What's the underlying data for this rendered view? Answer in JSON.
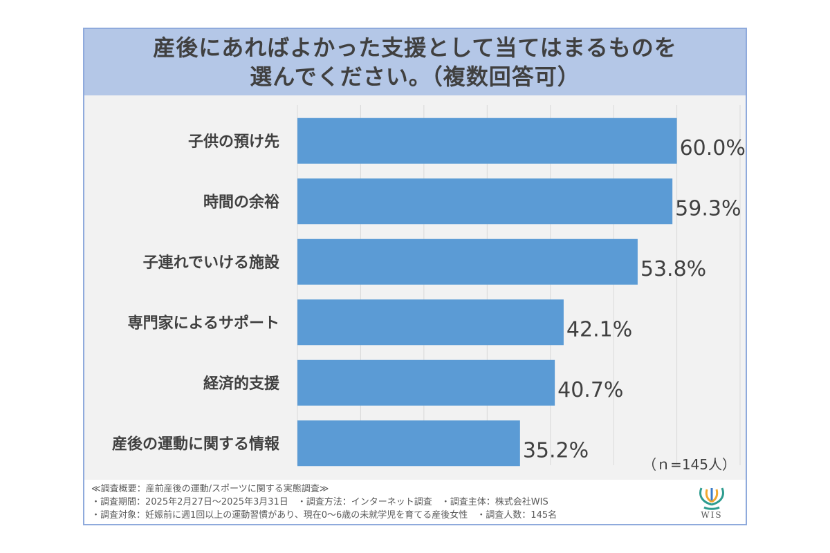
{
  "chart_data": {
    "type": "bar",
    "orientation": "horizontal",
    "title_lines": [
      "産後にあればよかった支援として当てはまるものを",
      "選んでください。（複数回答可）"
    ],
    "categories": [
      "子供の預け先",
      "時間の余裕",
      "子連れでいける施設",
      "専門家によるサポート",
      "経済的支援",
      "産後の運動に関する情報"
    ],
    "values": [
      60.0,
      59.3,
      53.8,
      42.1,
      40.7,
      35.2
    ],
    "value_labels": [
      "60.0%",
      "59.3%",
      "53.8%",
      "42.1%",
      "40.7%",
      "35.2%"
    ],
    "xlim": [
      0,
      70
    ],
    "grid": true,
    "bar_color": "#5b9bd5",
    "sample_note": "（ｎ=145人）"
  },
  "footer": {
    "lines": [
      "≪調査概要：産前産後の運動/スポーツに関する実態調査≫",
      "・調査期間：2025年2月27日〜2025年3月31日　・調査方法：インターネット調査　・調査主体：株式会社WIS",
      "・調査対象：妊娠前に週1回以上の運動習慣があり、現在0〜6歳の未就学児を育てる産後女性　・調査人数：145名"
    ]
  },
  "logo": {
    "text": "WIS",
    "icon": "wis-logo-icon"
  },
  "colors": {
    "title_band": "#b4c7e7",
    "border": "#8faadc",
    "plot_bg": "#f2f2f2",
    "text": "#404040"
  }
}
